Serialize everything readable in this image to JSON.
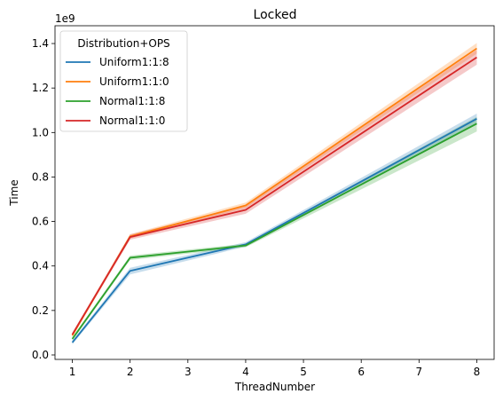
{
  "chart_data": {
    "type": "line",
    "title": "Locked",
    "xlabel": "ThreadNumber",
    "ylabel": "Time",
    "y_offset_label": "1e9",
    "xlim": [
      0.7,
      8.3
    ],
    "ylim": [
      -0.02,
      1.48
    ],
    "x_ticks": [
      1,
      2,
      3,
      4,
      5,
      6,
      7,
      8
    ],
    "y_ticks": [
      0.0,
      0.2,
      0.4,
      0.6,
      0.8,
      1.0,
      1.2,
      1.4
    ],
    "y_tick_labels": [
      "0.0",
      "0.2",
      "0.4",
      "0.6",
      "0.8",
      "1.0",
      "1.2",
      "1.4"
    ],
    "x": [
      1,
      2,
      4,
      8
    ],
    "legend": {
      "title": "Distribution+OPS",
      "placement": "top-left"
    },
    "series": [
      {
        "name": "Uniform1:1:8",
        "color": "#1f77b4",
        "values": [
          0.056,
          0.378,
          0.497,
          1.062
        ],
        "lower": [
          0.048,
          0.362,
          0.487,
          1.04
        ],
        "upper": [
          0.064,
          0.392,
          0.507,
          1.085
        ]
      },
      {
        "name": "Uniform1:1:0",
        "color": "#ff7f0e",
        "values": [
          0.088,
          0.533,
          0.672,
          1.378
        ],
        "lower": [
          0.08,
          0.523,
          0.66,
          1.355
        ],
        "upper": [
          0.096,
          0.543,
          0.685,
          1.402
        ]
      },
      {
        "name": "Normal1:1:8",
        "color": "#2ca02c",
        "values": [
          0.072,
          0.437,
          0.492,
          1.04
        ],
        "lower": [
          0.064,
          0.427,
          0.484,
          1.005
        ],
        "upper": [
          0.08,
          0.447,
          0.5,
          1.07
        ]
      },
      {
        "name": "Normal1:1:0",
        "color": "#d62728",
        "values": [
          0.092,
          0.53,
          0.652,
          1.338
        ],
        "lower": [
          0.084,
          0.518,
          0.635,
          1.305
        ],
        "upper": [
          0.1,
          0.542,
          0.668,
          1.372
        ]
      }
    ]
  }
}
